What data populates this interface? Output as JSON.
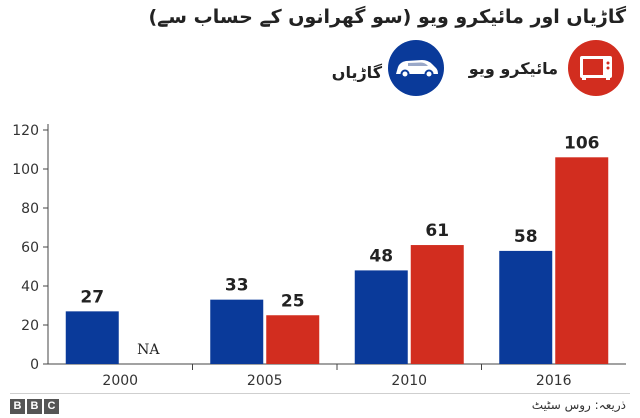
{
  "title": "گاڑیاں اور مائیکرو ویو (سو گھرانوں کے حساب سے)",
  "colors": {
    "cars": "#0a3a9a",
    "microwave": "#d22d1f",
    "axis": "#444444",
    "grid": "#dddddd"
  },
  "legend": {
    "microwave_label": "مائیکرو ویو",
    "microwave_icon": "microwave-icon",
    "cars_label": "گاڑیاں",
    "cars_icon": "car-icon"
  },
  "chart_data": {
    "type": "bar",
    "title": "گاڑیاں اور مائیکرو ویو (سو گھرانوں کے حساب سے)",
    "xlabel": "",
    "ylabel": "",
    "categories": [
      "2000",
      "2005",
      "2010",
      "2016"
    ],
    "ylim": [
      0,
      120
    ],
    "yticks": [
      0,
      20,
      40,
      60,
      80,
      100,
      120
    ],
    "grid": false,
    "legend_position": "top-right",
    "series": [
      {
        "name": "گاڑیاں",
        "color": "#0a3a9a",
        "values": [
          27,
          33,
          48,
          58
        ],
        "labels": [
          "27",
          "33",
          "48",
          "58"
        ]
      },
      {
        "name": "مائیکرو ویو",
        "color": "#d22d1f",
        "values": [
          null,
          25,
          61,
          106
        ],
        "labels": [
          "NA",
          "25",
          "61",
          "106"
        ]
      }
    ]
  },
  "footer": {
    "logo": [
      "B",
      "B",
      "C"
    ],
    "source": "ذریعہ: روس سٹیٹ"
  }
}
